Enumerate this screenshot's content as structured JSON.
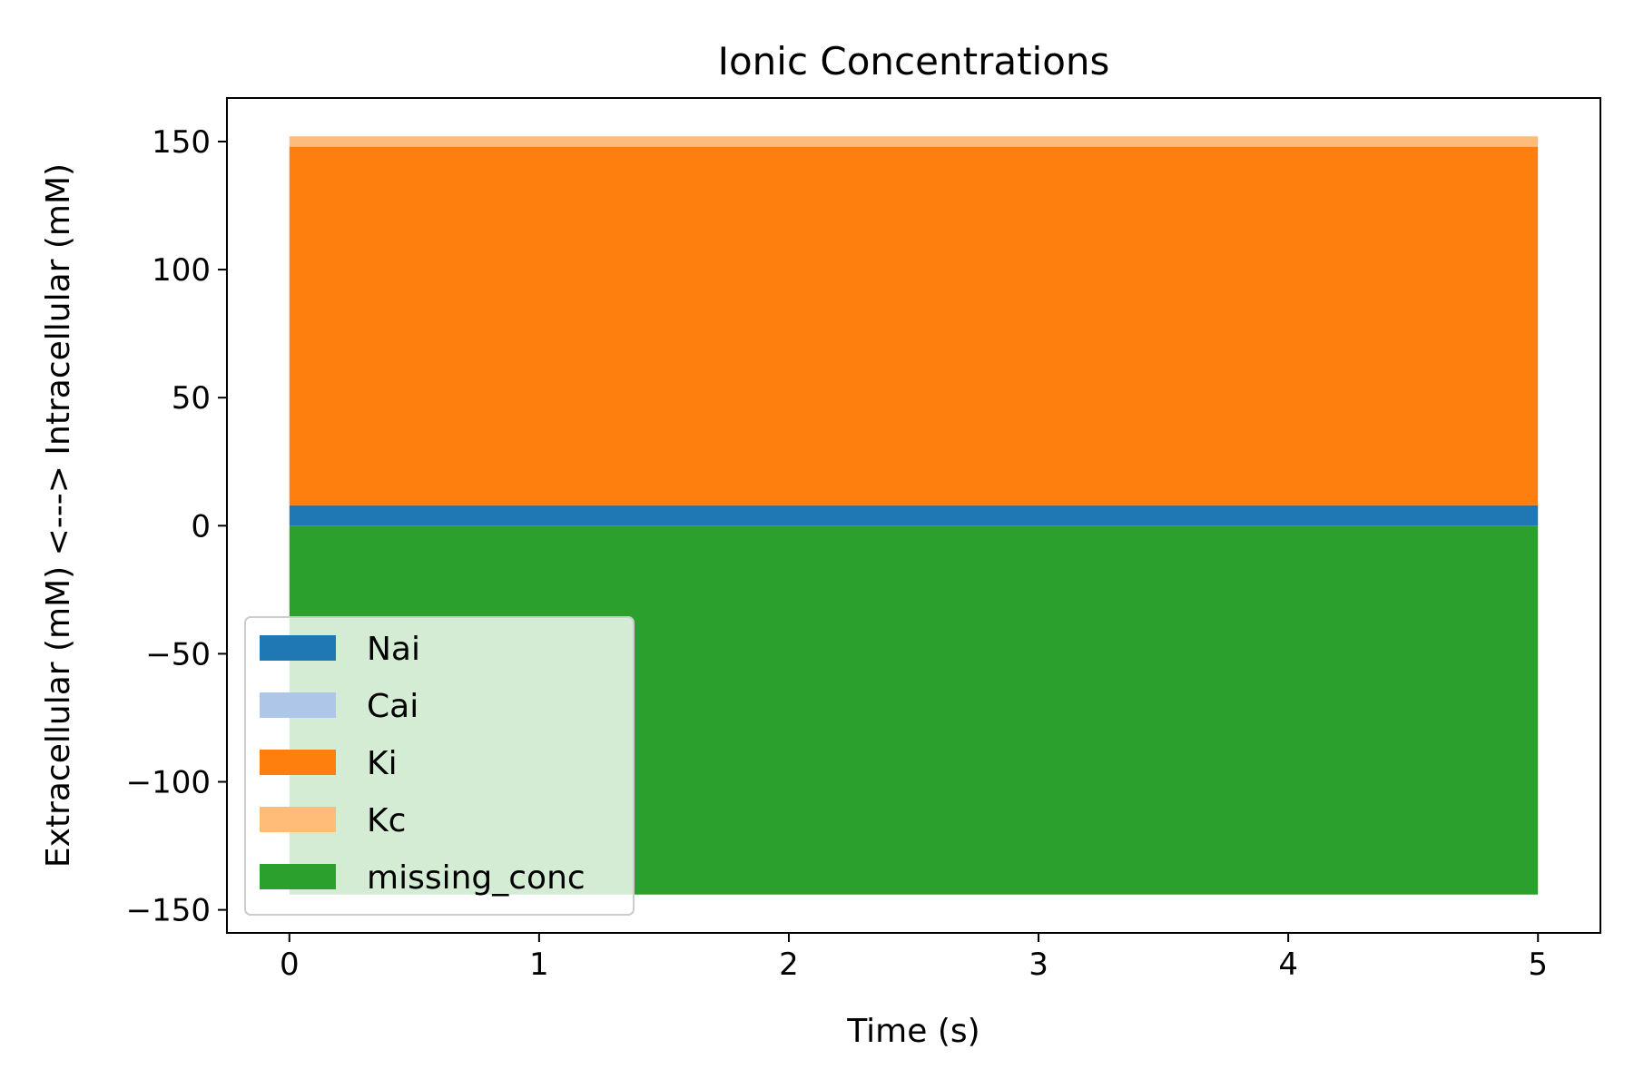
{
  "chart_data": {
    "type": "area",
    "title": "Ionic Concentrations",
    "xlabel": "Time (s)",
    "ylabel": "Extracellular (mM) <---> Intracellular (mM)",
    "xlim": [
      -0.25,
      5.25
    ],
    "ylim": [
      -159,
      167
    ],
    "xticks": [
      0,
      1,
      2,
      3,
      4,
      5
    ],
    "xtick_labels": [
      "0",
      "1",
      "2",
      "3",
      "4",
      "5"
    ],
    "yticks": [
      150,
      100,
      50,
      0,
      -50,
      -100,
      -150
    ],
    "ytick_labels": [
      "150",
      "100",
      "50",
      "0",
      "−50",
      "−100",
      "−150"
    ],
    "grid": false,
    "legend_position": "lower-left",
    "x": [
      0,
      5
    ],
    "series": [
      {
        "name": "Nai",
        "color": "#1f77b4",
        "base": 0,
        "values": [
          8,
          8
        ]
      },
      {
        "name": "Cai",
        "color": "#aec7e8",
        "base": 8,
        "values": [
          0.0001,
          0.0001
        ]
      },
      {
        "name": "Ki",
        "color": "#ff7f0e",
        "base": 8,
        "values": [
          140,
          140
        ]
      },
      {
        "name": "Kc",
        "color": "#ffbb78",
        "base": 148,
        "values": [
          4,
          4
        ]
      },
      {
        "name": "missing_conc",
        "color": "#2ca02c",
        "base": 0,
        "values": [
          -144,
          -144
        ]
      }
    ]
  }
}
